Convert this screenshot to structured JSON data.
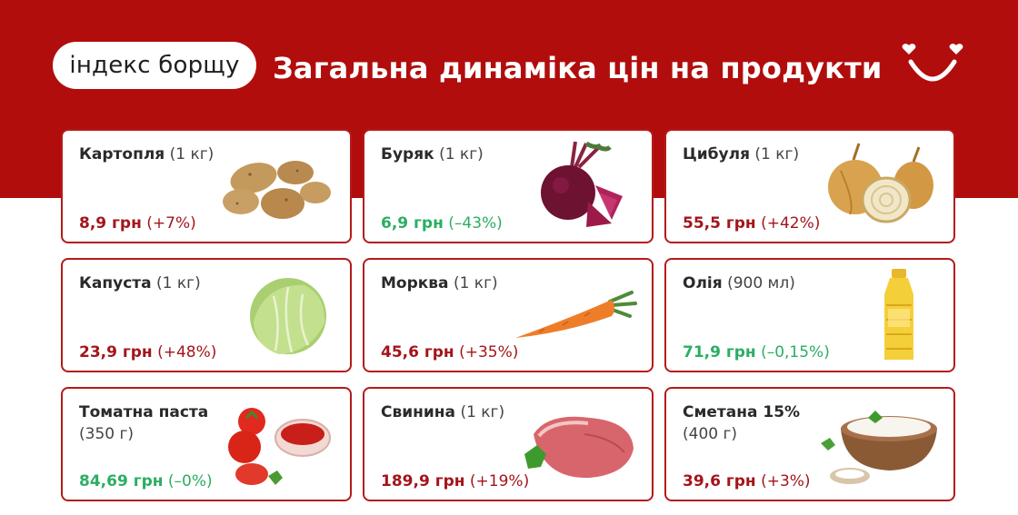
{
  "header": {
    "brand": "індекс борщу",
    "title": "Загальна динаміка цін на продукти"
  },
  "colors": {
    "brand_red": "#b10d0d",
    "price_up": "#a3151b",
    "price_down": "#2bae62"
  },
  "products": [
    {
      "name": "Картопля",
      "unit": "(1 кг)",
      "price": "8,9 грн",
      "change": "(+7%)",
      "trend": "up",
      "icon": "potatoes-icon"
    },
    {
      "name": "Буряк",
      "unit": "(1 кг)",
      "price": "6,9 грн",
      "change": "(–43%)",
      "trend": "down",
      "icon": "beetroot-icon"
    },
    {
      "name": "Цибуля",
      "unit": "(1 кг)",
      "price": "55,5 грн",
      "change": "(+42%)",
      "trend": "up",
      "icon": "onions-icon"
    },
    {
      "name": "Капуста",
      "unit": "(1 кг)",
      "price": "23,9 грн",
      "change": "(+48%)",
      "trend": "up",
      "icon": "cabbage-icon"
    },
    {
      "name": "Морква",
      "unit": "(1 кг)",
      "price": "45,6 грн",
      "change": "(+35%)",
      "trend": "up",
      "icon": "carrot-icon"
    },
    {
      "name": "Олія",
      "unit": "(900 мл)",
      "price": "71,9 грн",
      "change": "(–0,15%)",
      "trend": "down",
      "icon": "oil-bottle-icon"
    },
    {
      "name": "Томатна паста",
      "unit": "(350 г)",
      "price": "84,69 грн",
      "change": "(–0%)",
      "trend": "down",
      "icon": "tomato-paste-icon"
    },
    {
      "name": "Свинина",
      "unit": "(1 кг)",
      "price": "189,9 грн",
      "change": "(+19%)",
      "trend": "up",
      "icon": "pork-icon"
    },
    {
      "name": "Сметана 15%",
      "unit": "(400 г)",
      "price": "39,6 грн",
      "change": "(+3%)",
      "trend": "up",
      "icon": "sour-cream-icon"
    }
  ]
}
